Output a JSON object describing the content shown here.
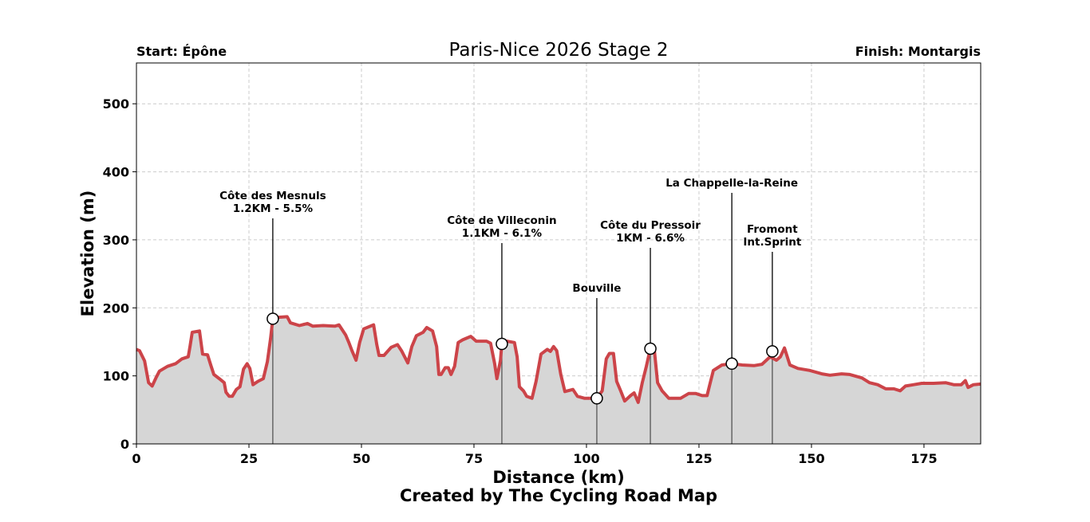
{
  "chart_data": {
    "type": "area",
    "title": "Paris-Nice 2026 Stage 2",
    "start_label": "Start: Épône",
    "finish_label": "Finish: Montargis",
    "xlabel": "Distance (km)",
    "ylabel": "Elevation (m)",
    "credit": "Created by The Cycling Road Map",
    "xlim": [
      0,
      187.6
    ],
    "ylim": [
      0,
      560
    ],
    "xticks": [
      0,
      25,
      50,
      75,
      100,
      125,
      150,
      175
    ],
    "yticks": [
      0,
      100,
      200,
      300,
      400,
      500
    ],
    "grid": true,
    "colors": {
      "line": "#cc4449",
      "fill": "#d6d6d6",
      "grid": "#cccccc",
      "marker_line": "#555555"
    },
    "profile": [
      [
        0,
        139
      ],
      [
        0.7,
        137
      ],
      [
        1.8,
        122
      ],
      [
        2.7,
        90
      ],
      [
        3.5,
        85
      ],
      [
        4.4,
        98
      ],
      [
        5.1,
        107
      ],
      [
        6.9,
        114
      ],
      [
        8.7,
        118
      ],
      [
        10.1,
        125
      ],
      [
        11.5,
        128
      ],
      [
        11.9,
        143
      ],
      [
        12.4,
        164
      ],
      [
        14.0,
        166
      ],
      [
        14.7,
        132
      ],
      [
        15.8,
        131
      ],
      [
        16.5,
        116
      ],
      [
        17.2,
        102
      ],
      [
        18.4,
        96
      ],
      [
        19.5,
        90
      ],
      [
        19.9,
        76
      ],
      [
        20.6,
        70
      ],
      [
        21.3,
        70
      ],
      [
        22.2,
        80
      ],
      [
        23.0,
        84
      ],
      [
        23.8,
        110
      ],
      [
        24.6,
        118
      ],
      [
        25.2,
        111
      ],
      [
        25.9,
        87
      ],
      [
        27.0,
        92
      ],
      [
        28.2,
        96
      ],
      [
        29.1,
        121
      ],
      [
        29.8,
        155
      ],
      [
        30.3,
        184
      ],
      [
        31.2,
        186
      ],
      [
        33.5,
        187
      ],
      [
        34.2,
        178
      ],
      [
        36.2,
        174
      ],
      [
        38.0,
        177
      ],
      [
        39.2,
        173
      ],
      [
        41.5,
        174
      ],
      [
        44.1,
        173
      ],
      [
        45.0,
        175
      ],
      [
        46.5,
        160
      ],
      [
        47.2,
        149
      ],
      [
        47.9,
        137
      ],
      [
        48.8,
        123
      ],
      [
        49.6,
        149
      ],
      [
        50.5,
        169
      ],
      [
        52.7,
        175
      ],
      [
        53.4,
        146
      ],
      [
        53.9,
        130
      ],
      [
        55.0,
        130
      ],
      [
        56.6,
        142
      ],
      [
        58.0,
        146
      ],
      [
        58.9,
        137
      ],
      [
        60.3,
        119
      ],
      [
        61.2,
        143
      ],
      [
        62.2,
        159
      ],
      [
        63.7,
        164
      ],
      [
        64.5,
        171
      ],
      [
        65.8,
        166
      ],
      [
        66.7,
        143
      ],
      [
        67.2,
        102
      ],
      [
        67.7,
        102
      ],
      [
        68.6,
        112
      ],
      [
        69.3,
        112
      ],
      [
        69.9,
        102
      ],
      [
        70.7,
        114
      ],
      [
        71.5,
        149
      ],
      [
        72.5,
        153
      ],
      [
        74.3,
        158
      ],
      [
        75.5,
        151
      ],
      [
        77.8,
        151
      ],
      [
        78.7,
        148
      ],
      [
        79.6,
        118
      ],
      [
        80.1,
        96
      ],
      [
        80.9,
        123
      ],
      [
        81.2,
        147
      ],
      [
        82.3,
        151
      ],
      [
        84.0,
        149
      ],
      [
        84.6,
        128
      ],
      [
        85.1,
        84
      ],
      [
        86.0,
        78
      ],
      [
        86.7,
        70
      ],
      [
        87.9,
        67
      ],
      [
        88.8,
        92
      ],
      [
        89.9,
        132
      ],
      [
        91.3,
        139
      ],
      [
        92.0,
        136
      ],
      [
        92.7,
        143
      ],
      [
        93.4,
        137
      ],
      [
        94.3,
        102
      ],
      [
        95.2,
        77
      ],
      [
        97.0,
        80
      ],
      [
        98.0,
        70
      ],
      [
        99.6,
        67
      ],
      [
        101.2,
        67
      ],
      [
        102.3,
        67
      ],
      [
        103.5,
        78
      ],
      [
        104.4,
        125
      ],
      [
        105.1,
        133
      ],
      [
        106.0,
        133
      ],
      [
        106.7,
        92
      ],
      [
        107.6,
        78
      ],
      [
        108.5,
        63
      ],
      [
        109.8,
        71
      ],
      [
        110.6,
        75
      ],
      [
        111.5,
        61
      ],
      [
        112.4,
        90
      ],
      [
        113.3,
        114
      ],
      [
        114.2,
        140
      ],
      [
        115.1,
        137
      ],
      [
        115.8,
        90
      ],
      [
        116.8,
        78
      ],
      [
        118.3,
        67
      ],
      [
        119.5,
        67
      ],
      [
        120.9,
        67
      ],
      [
        122.7,
        74
      ],
      [
        124.3,
        74
      ],
      [
        125.7,
        71
      ],
      [
        126.8,
        71
      ],
      [
        127.5,
        90
      ],
      [
        128.2,
        108
      ],
      [
        130.1,
        116
      ],
      [
        132.3,
        118
      ],
      [
        134.6,
        116
      ],
      [
        137.2,
        115
      ],
      [
        139.0,
        117
      ],
      [
        140.8,
        128
      ],
      [
        142.2,
        123
      ],
      [
        143.1,
        128
      ],
      [
        144.0,
        141
      ],
      [
        145.2,
        116
      ],
      [
        147.0,
        111
      ],
      [
        149.6,
        108
      ],
      [
        152.3,
        103
      ],
      [
        154.1,
        101
      ],
      [
        156.7,
        103
      ],
      [
        158.5,
        102
      ],
      [
        161.2,
        97
      ],
      [
        162.9,
        90
      ],
      [
        164.7,
        87
      ],
      [
        166.5,
        81
      ],
      [
        168.3,
        81
      ],
      [
        169.7,
        78
      ],
      [
        170.9,
        85
      ],
      [
        172.7,
        87
      ],
      [
        174.5,
        89
      ],
      [
        177.1,
        89
      ],
      [
        179.8,
        90
      ],
      [
        181.6,
        87
      ],
      [
        183.3,
        87
      ],
      [
        184.2,
        93
      ],
      [
        184.8,
        83
      ],
      [
        186.0,
        87
      ],
      [
        187.6,
        88
      ]
    ],
    "annotations": [
      {
        "km": 30.3,
        "elev": 184,
        "lines": [
          "Côte des Mesnuls",
          "1.2KM - 5.5%"
        ]
      },
      {
        "km": 81.2,
        "elev": 147,
        "lines": [
          "Côte de Villeconin",
          "1.1KM - 6.1%"
        ]
      },
      {
        "km": 102.3,
        "elev": 67,
        "lines": [
          "Bouville"
        ]
      },
      {
        "km": 114.2,
        "elev": 140,
        "lines": [
          "Côte du Pressoir",
          "1KM - 6.6%"
        ]
      },
      {
        "km": 132.3,
        "elev": 118,
        "lines": [
          "La Chappelle-la-Reine"
        ]
      },
      {
        "km": 141.3,
        "elev": 136,
        "lines": [
          "Fromont",
          "Int.Sprint"
        ]
      }
    ]
  }
}
